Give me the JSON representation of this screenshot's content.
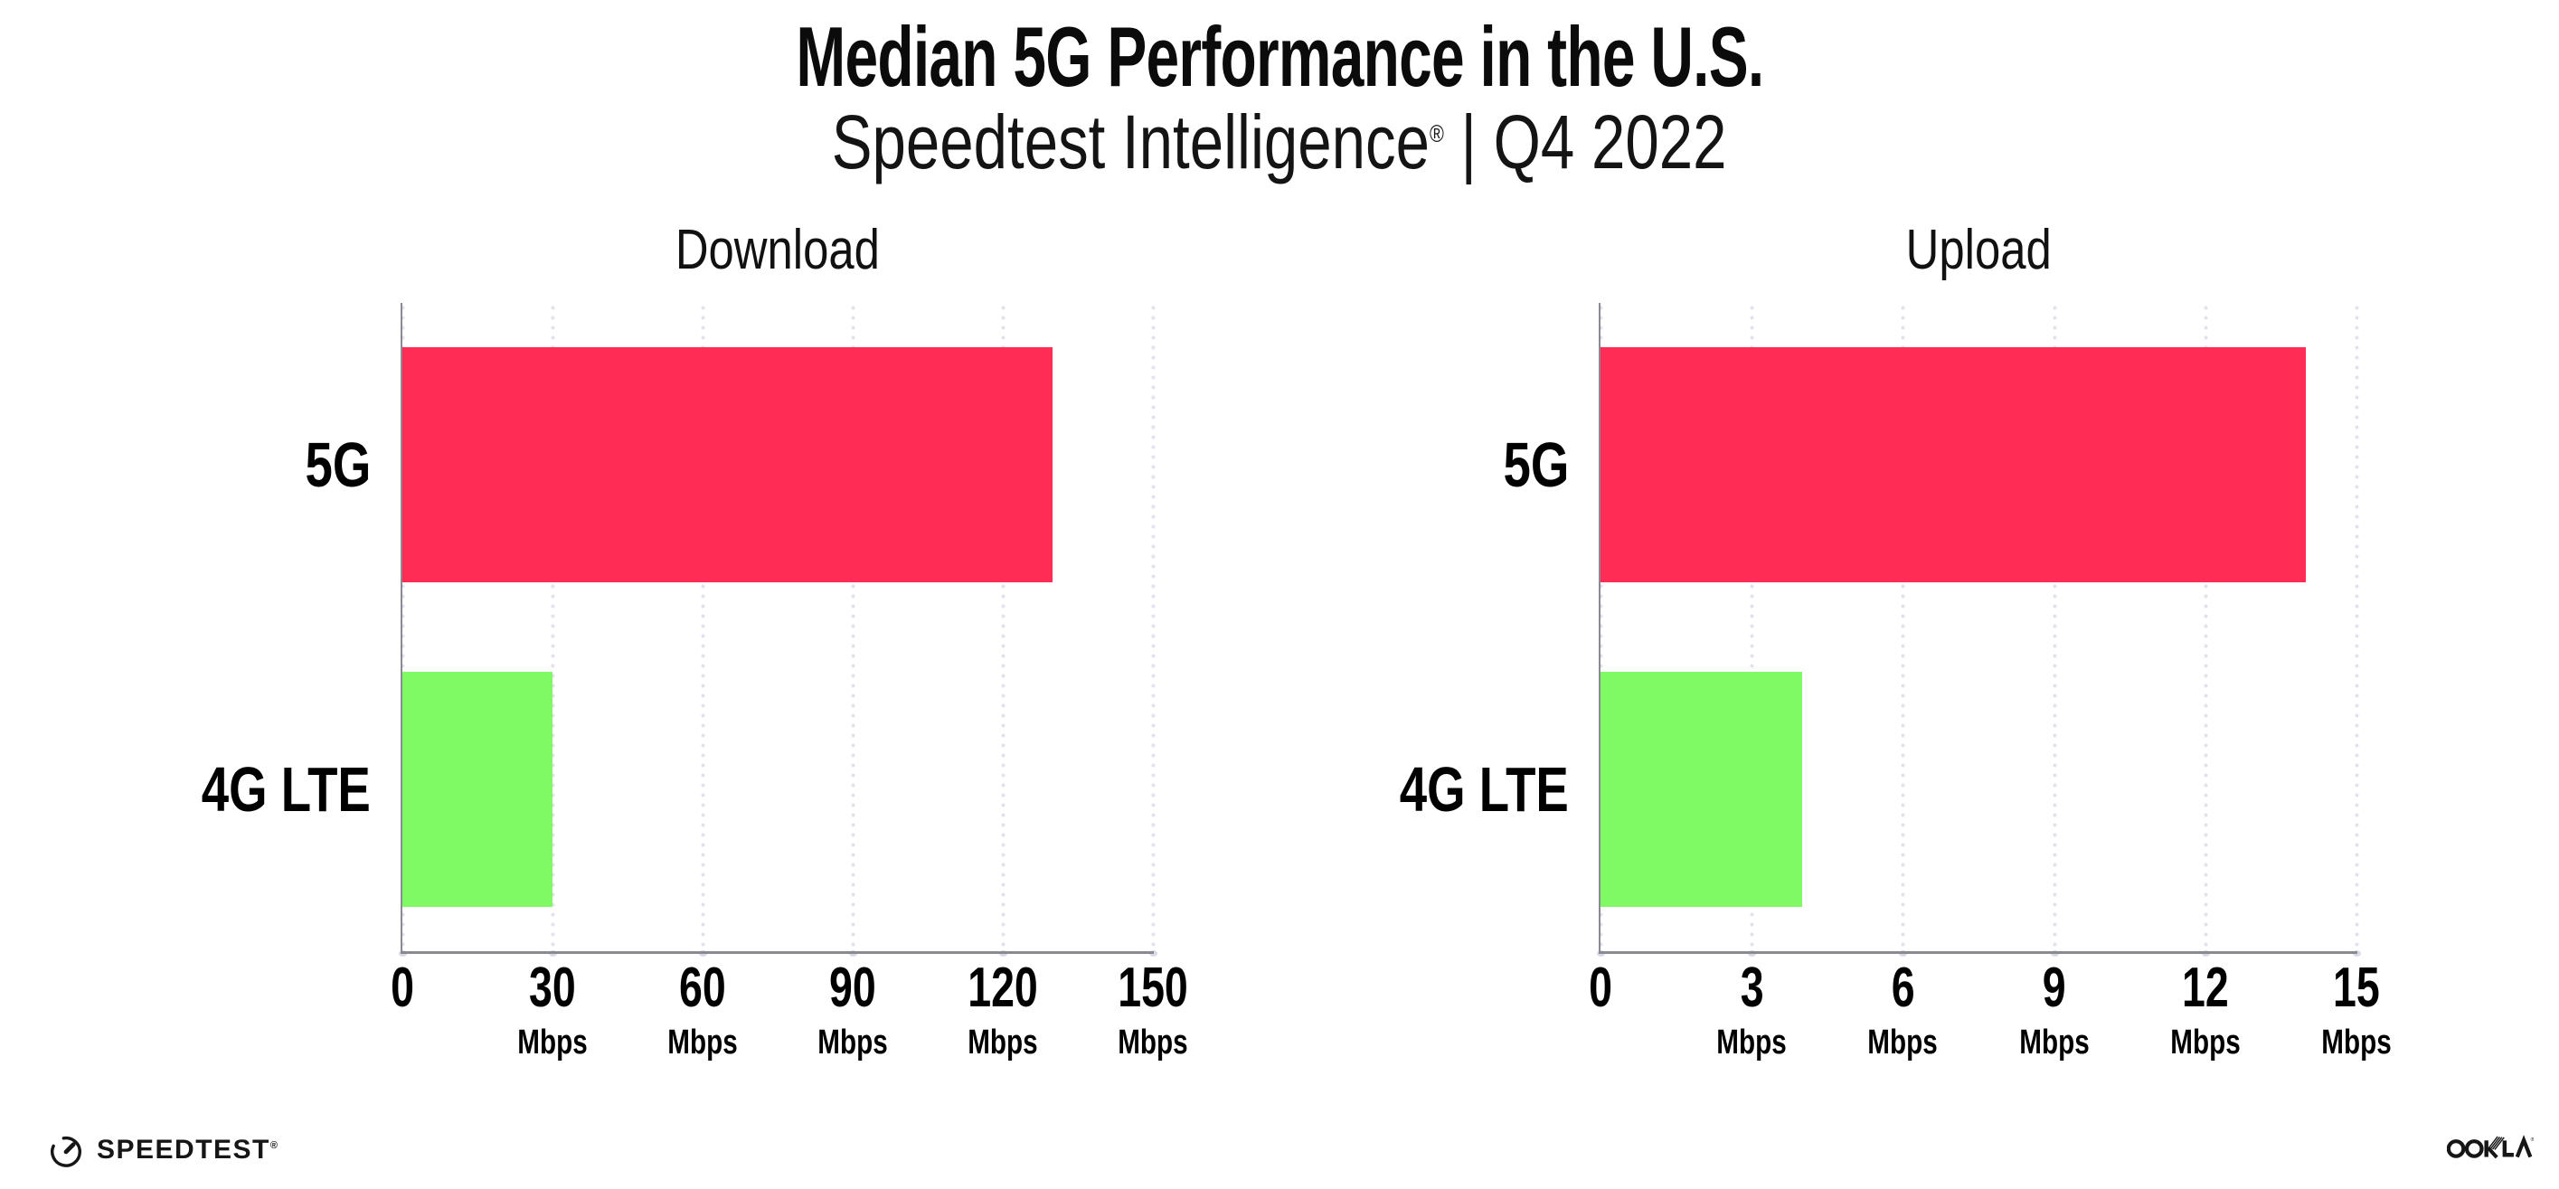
{
  "header": {
    "title": "Median 5G Performance in the U.S.",
    "subtitle_brand": "Speedtest Intelligence",
    "subtitle_reg": "®",
    "subtitle_rest": " | Q4 2022"
  },
  "chart_data": [
    {
      "type": "bar",
      "orientation": "horizontal",
      "title": "Download",
      "categories": [
        "5G",
        "4G LTE"
      ],
      "values": [
        130,
        30
      ],
      "unit": "Mbps",
      "xlim": [
        0,
        150
      ],
      "xticks": [
        0,
        30,
        60,
        90,
        120,
        150
      ],
      "bar_colors": [
        "#FF2D55",
        "#7FFA64"
      ],
      "grid": "dotted-vertical",
      "legend": "none"
    },
    {
      "type": "bar",
      "orientation": "horizontal",
      "title": "Upload",
      "categories": [
        "5G",
        "4G LTE"
      ],
      "values": [
        14,
        4
      ],
      "unit": "Mbps",
      "xlim": [
        0,
        15
      ],
      "xticks": [
        0,
        3,
        6,
        9,
        12,
        15
      ],
      "bar_colors": [
        "#FF2D55",
        "#7FFA64"
      ],
      "grid": "dotted-vertical",
      "legend": "none"
    }
  ],
  "footer": {
    "speedtest_label": "SPEEDTEST",
    "speedtest_reg": "®",
    "ookla_label": "OOKLA",
    "ookla_reg": "®"
  },
  "colors": {
    "bar_5g": "#FF2D55",
    "bar_4g_lte": "#7FFA64",
    "axis": "#8A8A92",
    "grid_dot": "#E2E2EE",
    "text": "#000000",
    "background": "#FFFFFF"
  }
}
